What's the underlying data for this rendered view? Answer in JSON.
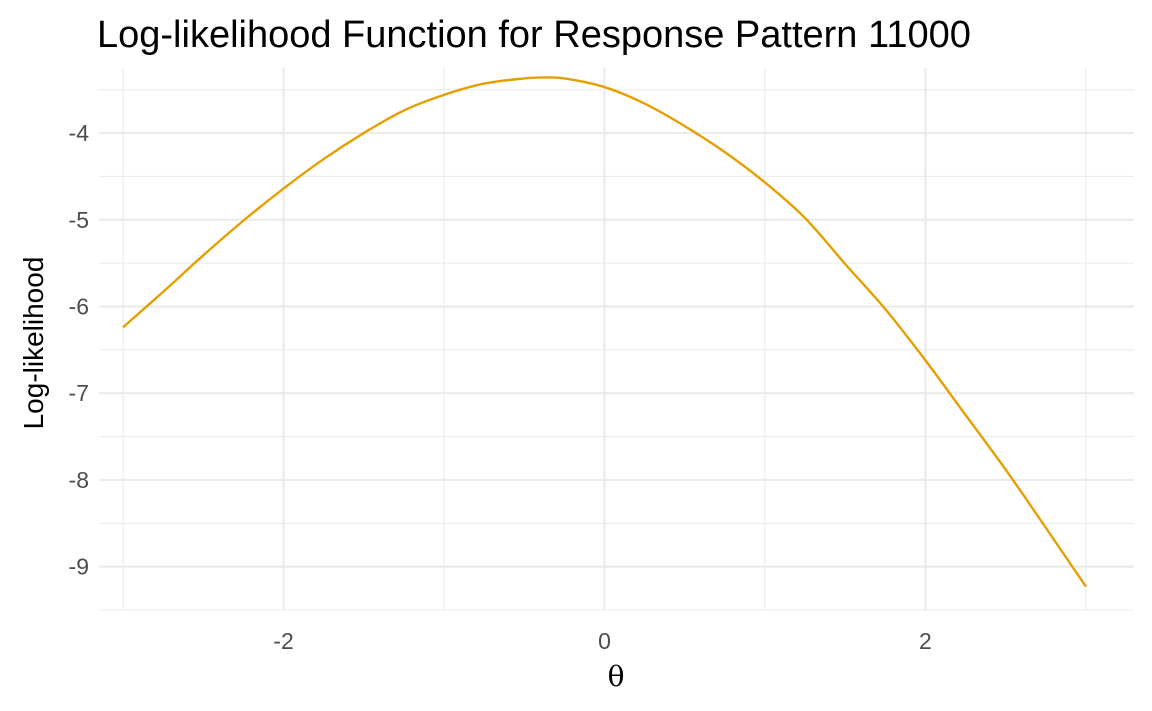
{
  "chart_data": {
    "type": "line",
    "title": "Log-likelihood Function for Response Pattern 11000",
    "xlabel": "θ",
    "ylabel": "Log-likelihood",
    "xlim": [
      -3.15,
      3.3
    ],
    "ylim": [
      -9.5,
      -3.25
    ],
    "x_ticks": [
      -2,
      0,
      2
    ],
    "x_tick_labels": [
      "-2",
      "0",
      "2"
    ],
    "x_minor_ticks": [
      -3,
      -1,
      1,
      3
    ],
    "y_ticks": [
      -9,
      -8,
      -7,
      -6,
      -5,
      -4
    ],
    "y_tick_labels": [
      "-9",
      "-8",
      "-7",
      "-6",
      "-5",
      "-4"
    ],
    "y_minor_ticks": [
      -9.5,
      -8.5,
      -7.5,
      -6.5,
      -5.5,
      -4.5,
      -3.5
    ],
    "grid": true,
    "legend": "none",
    "series": [
      {
        "color": "#E69F00",
        "x": [
          -3,
          -2.75,
          -2.5,
          -2.25,
          -2,
          -1.75,
          -1.5,
          -1.25,
          -1,
          -0.75,
          -0.5,
          -0.4,
          -0.25,
          0,
          0.25,
          0.5,
          0.75,
          1,
          1.25,
          1.5,
          1.75,
          2,
          2.25,
          2.5,
          2.75,
          3
        ],
        "y": [
          -6.24,
          -5.83,
          -5.41,
          -5.01,
          -4.64,
          -4.3,
          -4.0,
          -3.74,
          -3.56,
          -3.43,
          -3.37,
          -3.36,
          -3.37,
          -3.47,
          -3.66,
          -3.92,
          -4.22,
          -4.57,
          -4.98,
          -5.51,
          -6.03,
          -6.62,
          -7.25,
          -7.88,
          -8.55,
          -9.23
        ]
      }
    ]
  }
}
